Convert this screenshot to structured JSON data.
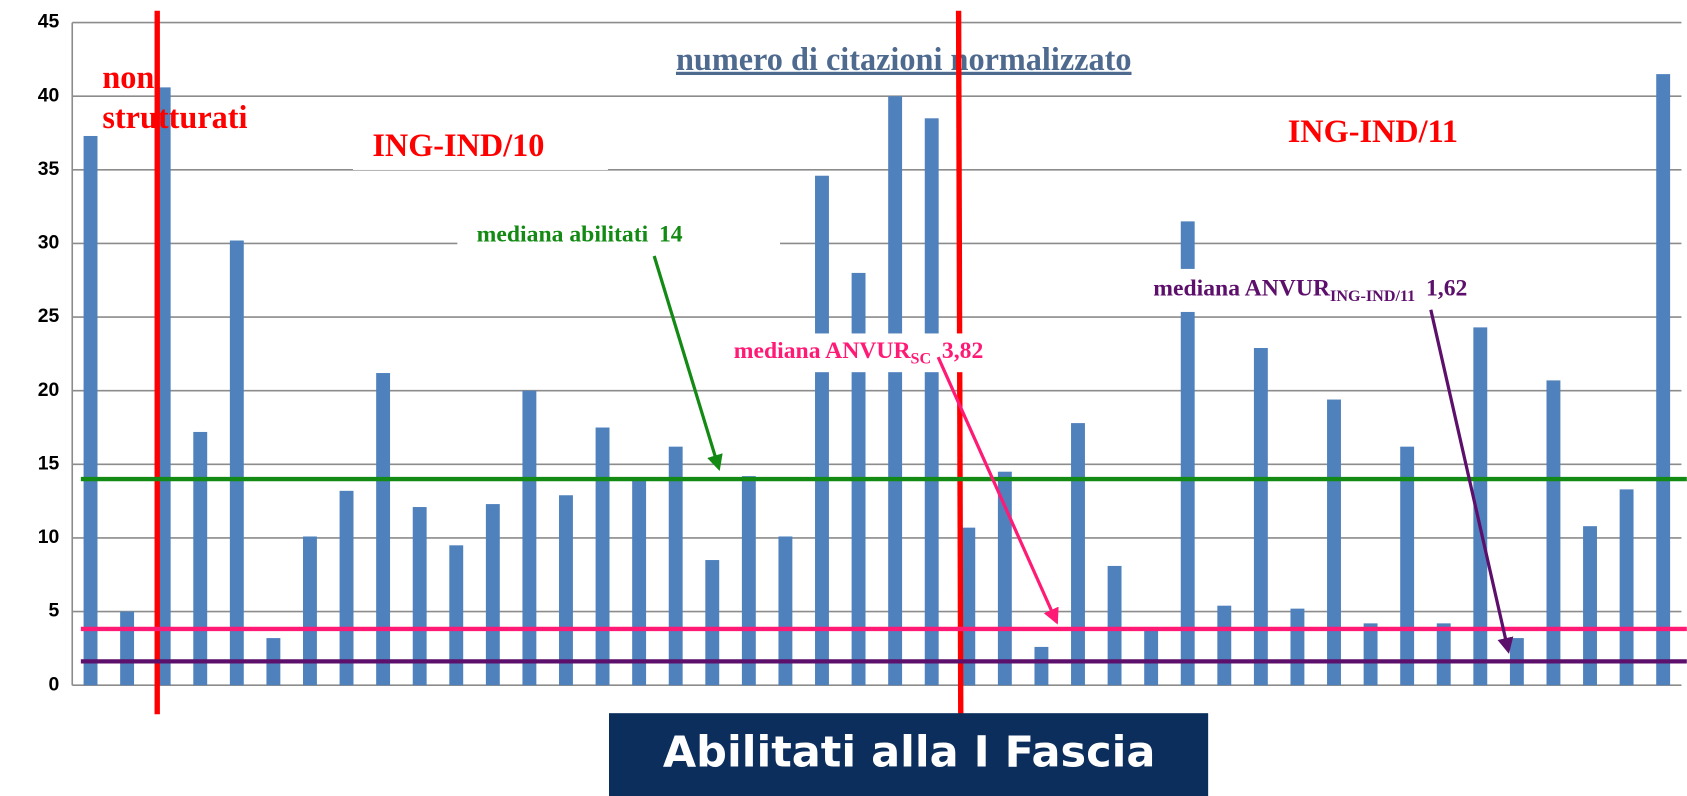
{
  "chart_data": {
    "type": "bar",
    "title": "numero di citazioni normalizzato",
    "banner": "Abilitati alla I Fascia",
    "color": "#4f81bd",
    "ylim": [
      0,
      45
    ],
    "yticks": [
      0,
      5,
      10,
      15,
      20,
      25,
      30,
      35,
      40,
      45
    ],
    "grid": true,
    "values": [
      37.3,
      5.0,
      40.6,
      17.2,
      30.2,
      3.2,
      10.1,
      13.2,
      21.2,
      12.1,
      9.5,
      12.3,
      20.0,
      12.9,
      17.5,
      14.0,
      16.2,
      8.5,
      14.2,
      10.1,
      34.6,
      28.0,
      40.0,
      38.5,
      10.7,
      14.5,
      2.6,
      17.8,
      8.1,
      3.9,
      31.5,
      5.4,
      22.9,
      5.2,
      19.4,
      4.2,
      16.2,
      4.2,
      24.3,
      3.2,
      20.7,
      10.8,
      13.3,
      41.5
    ],
    "groups": [
      "non",
      "strutturati",
      "ING-IND/10",
      "ING-IND/11"
    ],
    "reference_lines": [
      {
        "name": "mediana abilitati",
        "value": 14,
        "value_label": "14",
        "color": "#138a13"
      },
      {
        "name": "mediana ANVUR",
        "subscript": "SC",
        "value": 3.82,
        "value_label": "3,82",
        "color": "#ff1a75"
      },
      {
        "name": "mediana ANVUR",
        "subscript": "ING-IND/11",
        "value": 1.62,
        "value_label": "1,62",
        "color": "#5c0f6b"
      }
    ]
  }
}
